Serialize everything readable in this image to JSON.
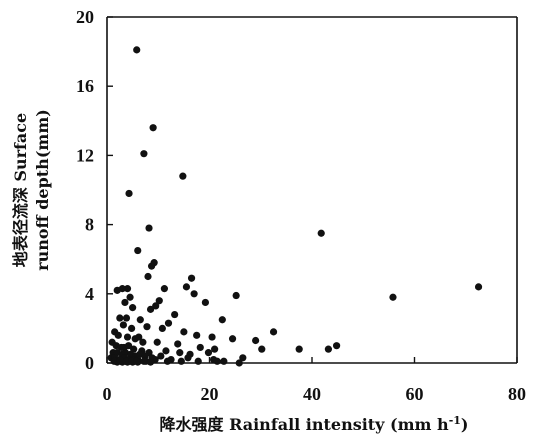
{
  "chart_data": {
    "type": "scatter",
    "title": "",
    "xlabel": "降水强度 Rainfall intensity (mm h",
    "xlabel_sup": "-1",
    "xlabel_end": ")",
    "ylabel_line1": "地表径流深 Surface",
    "ylabel_line2": "runoff depth(mm)",
    "xlim": [
      0,
      80
    ],
    "ylim": [
      0,
      20
    ],
    "xticks": [
      "0",
      "20",
      "40",
      "60",
      "80"
    ],
    "yticks": [
      "0",
      "4",
      "8",
      "12",
      "16",
      "20"
    ],
    "grid": false,
    "legend": "none",
    "series": [
      {
        "x": [
          5.8,
          9.0,
          7.2,
          14.8,
          4.3,
          8.2,
          41.8,
          6.0,
          9.2,
          8.7,
          16.5,
          8.0,
          15.5,
          17.0,
          4.0,
          11.2,
          2.0,
          3.0,
          4.5,
          10.2,
          25.2,
          3.5,
          19.2,
          55.8,
          72.5,
          9.5,
          5.0,
          8.5,
          13.2,
          22.5,
          2.5,
          3.8,
          6.5,
          12.0,
          32.5,
          3.2,
          4.8,
          7.8,
          10.8,
          15.0,
          17.5,
          20.5,
          24.5,
          29.0,
          1.5,
          2.2,
          4.0,
          5.5,
          6.2,
          7.0,
          9.8,
          13.8,
          18.2,
          21.0,
          30.2,
          37.5,
          43.2,
          44.8,
          1.0,
          1.8,
          2.8,
          3.3,
          4.2,
          5.2,
          6.8,
          8.2,
          11.5,
          14.2,
          16.2,
          19.8,
          26.5,
          1.2,
          2.0,
          3.0,
          3.6,
          4.6,
          5.6,
          6.4,
          7.4,
          8.8,
          10.5,
          12.5,
          15.8,
          20.8,
          22.8,
          0.8,
          1.5,
          2.4,
          3.4,
          4.4,
          5.0,
          6.0,
          7.6,
          9.4,
          11.8,
          14.5,
          17.8,
          21.5,
          25.8,
          2.0,
          3.0,
          4.0,
          5.0,
          6.0,
          7.2,
          8.5,
          1.4,
          2.6,
          3.8,
          4.8,
          5.8
        ],
        "y": [
          18.1,
          13.6,
          12.1,
          10.8,
          9.8,
          7.8,
          7.5,
          6.5,
          5.8,
          5.6,
          4.9,
          5.0,
          4.4,
          4.0,
          4.3,
          4.3,
          4.2,
          4.3,
          3.8,
          3.6,
          3.9,
          3.5,
          3.5,
          3.8,
          4.4,
          3.3,
          3.2,
          3.1,
          2.8,
          2.5,
          2.6,
          2.6,
          2.5,
          2.3,
          1.8,
          2.2,
          2.0,
          2.1,
          2.0,
          1.8,
          1.6,
          1.5,
          1.4,
          1.3,
          1.8,
          1.6,
          1.5,
          1.4,
          1.5,
          1.2,
          1.2,
          1.1,
          0.9,
          0.8,
          0.8,
          0.8,
          0.8,
          1.0,
          1.2,
          1.0,
          0.9,
          0.9,
          1.0,
          0.8,
          0.7,
          0.6,
          0.7,
          0.6,
          0.5,
          0.6,
          0.3,
          0.6,
          0.6,
          0.5,
          0.6,
          0.5,
          0.4,
          0.5,
          0.4,
          0.3,
          0.4,
          0.2,
          0.3,
          0.2,
          0.1,
          0.3,
          0.3,
          0.2,
          0.3,
          0.2,
          0.2,
          0.2,
          0.1,
          0.2,
          0.1,
          0.1,
          0.1,
          0.1,
          0.0,
          0.05,
          0.05,
          0.05,
          0.05,
          0.05,
          0.1,
          0.05,
          0.1,
          0.15,
          0.1,
          0.1,
          0.1
        ]
      }
    ]
  }
}
